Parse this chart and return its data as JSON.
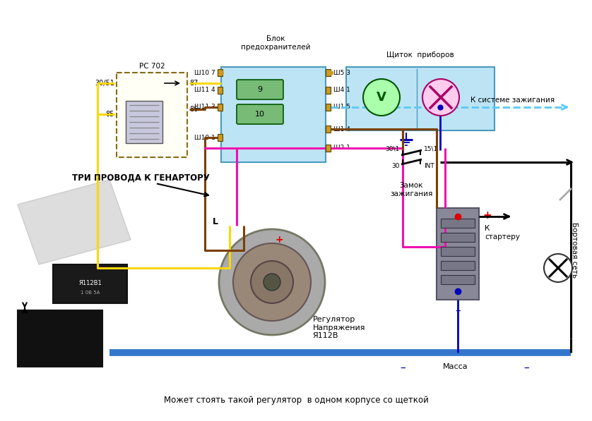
{
  "bg_color": "#ffffff",
  "fuse_block_label": "Блок\nпредохранителей",
  "instrument_panel_label": "Щиток  приборов",
  "relay_label": "РС 702",
  "three_wires_label": "ТРИ ПРОВОДА К ГЕНАРТОРУ",
  "regulator_label": "Регулятор\nНапряжения\nЯ112В",
  "ignition_label": "Замок\nзажигания",
  "to_ignition_label": "К системе зажигания",
  "to_starter_label": "К\nстартеру",
  "ground_label": "Масса",
  "board_net_label": "Бортовая сеть",
  "int_label": "INT",
  "bottom_label": "Может стоять такой регулятор  в одном корпусе со щеткой",
  "color_yellow": "#FFD700",
  "color_brown": "#7B3F00",
  "color_pink": "#EE10B0",
  "color_blue_light": "#5BC8F5",
  "color_blue_dark": "#0000BB",
  "color_black": "#000000",
  "color_red": "#DD0000",
  "color_fuse_bg": "#BDE4F4",
  "color_relay_border": "#8B6914",
  "color_gray_bat": "#888898"
}
